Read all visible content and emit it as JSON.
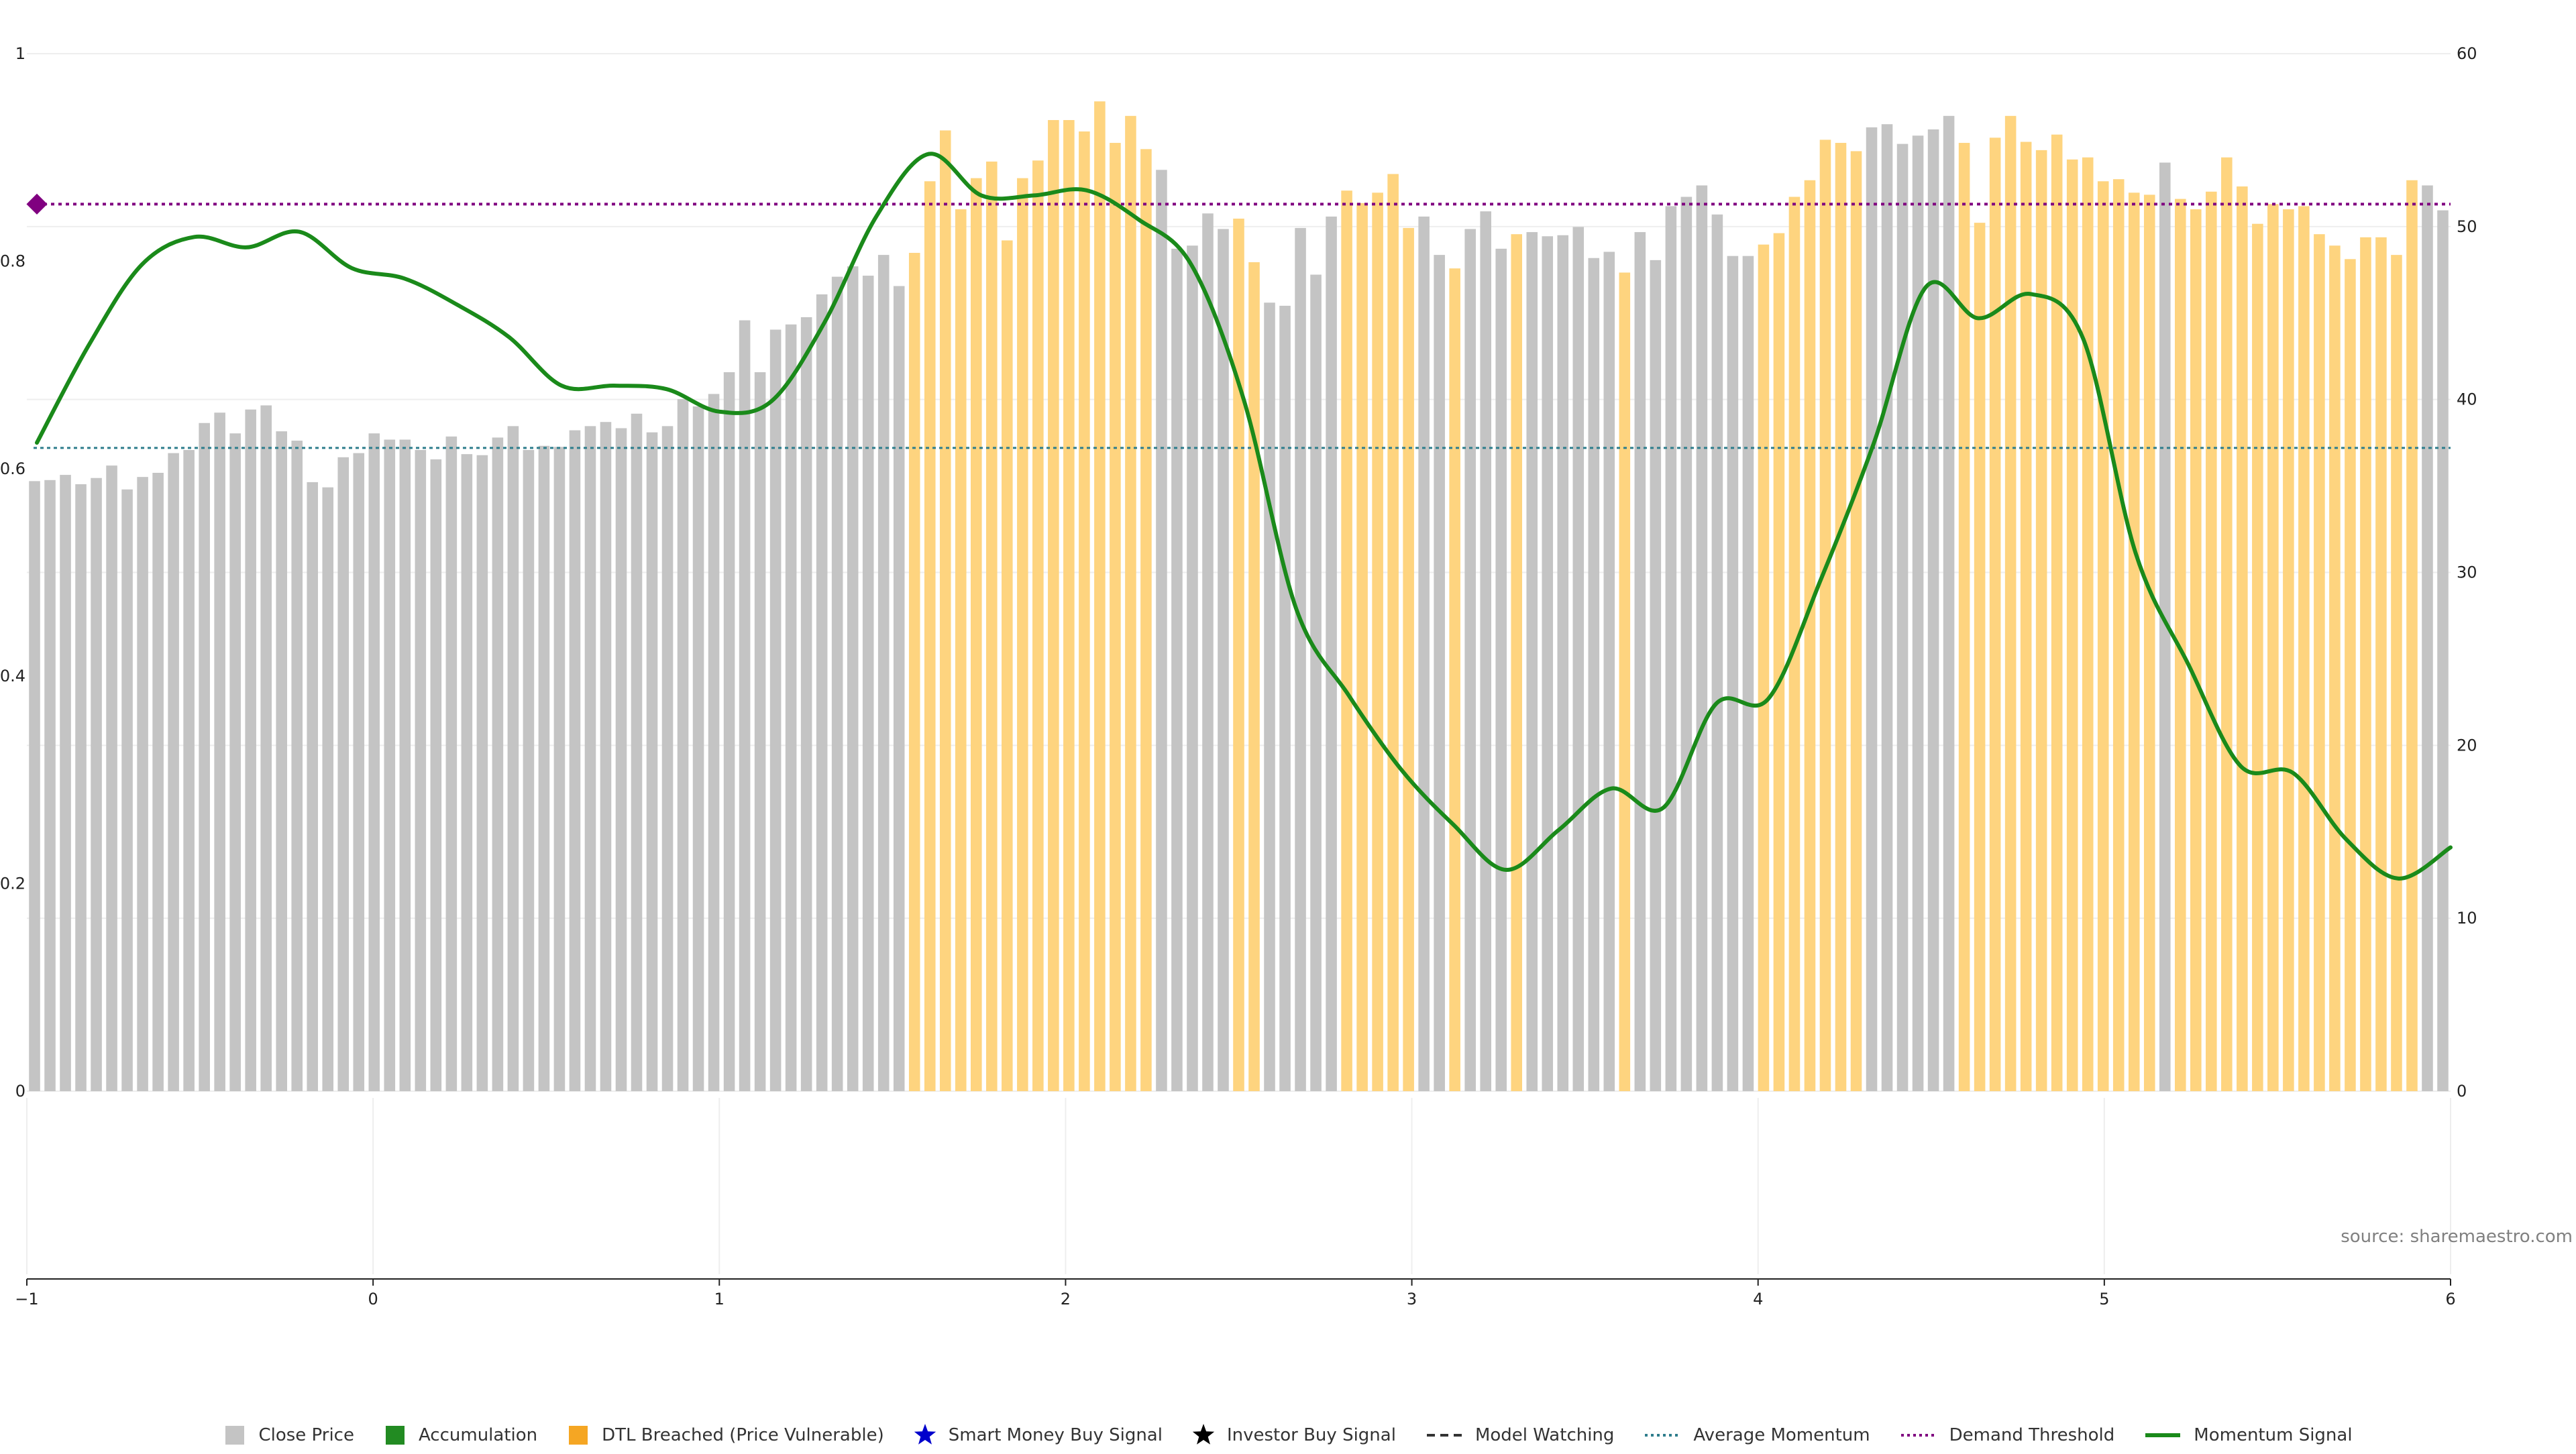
{
  "chart_data": {
    "type": "bar",
    "source": "source: sharemaestro.com",
    "left_axis": {
      "min": 0,
      "max": 1,
      "ticks": [
        "0",
        "0.2",
        "0.4",
        "0.6",
        "0.8",
        "1"
      ]
    },
    "right_axis": {
      "min": 0,
      "max": 60,
      "ticks": [
        "0",
        "10",
        "20",
        "30",
        "40",
        "50",
        "60"
      ]
    },
    "x_axis": {
      "min": -1,
      "max": 6,
      "ticks": [
        "−1",
        "0",
        "1",
        "2",
        "3",
        "4",
        "5",
        "6"
      ]
    },
    "grid": true,
    "legend_position": "bottom-center",
    "colors": {
      "close": "#c4c4c4",
      "accumulation": "#228b22",
      "dtl": "#fed47f",
      "smart_money": "#0000cc",
      "investor": "#000000",
      "model_watching": "#333333",
      "avg_momentum": "#2e7d8c",
      "demand": "#800080",
      "momentum": "#1a8a1a"
    },
    "legend": [
      {
        "label": "Close Price",
        "icon": "square",
        "color": "#c4c4c4"
      },
      {
        "label": "Accumulation",
        "icon": "square",
        "color": "#228b22"
      },
      {
        "label": "DTL Breached (Price Vulnerable)",
        "icon": "square",
        "color": "#f5a623"
      },
      {
        "label": "Smart Money Buy Signal",
        "icon": "star",
        "color": "#0000cc"
      },
      {
        "label": "Investor Buy Signal",
        "icon": "star",
        "color": "#000000"
      },
      {
        "label": "Model Watching",
        "icon": "dashed-line",
        "color": "#333333"
      },
      {
        "label": "Average Momentum",
        "icon": "dotted-line",
        "color": "#2e7d8c"
      },
      {
        "label": "Demand Threshold",
        "icon": "dotted-line",
        "color": "#800080"
      },
      {
        "label": "Momentum Signal",
        "icon": "solid-line",
        "color": "#1a8a1a"
      }
    ],
    "bars": {
      "values": [
        0.588,
        0.589,
        0.594,
        0.585,
        0.591,
        0.603,
        0.58,
        0.592,
        0.596,
        0.615,
        0.618,
        0.644,
        0.654,
        0.634,
        0.657,
        0.661,
        0.636,
        0.627,
        0.587,
        0.582,
        0.611,
        0.615,
        0.634,
        0.628,
        0.628,
        0.618,
        0.609,
        0.631,
        0.614,
        0.613,
        0.63,
        0.641,
        0.618,
        0.622,
        0.621,
        0.637,
        0.641,
        0.645,
        0.639,
        0.653,
        0.635,
        0.641,
        0.667,
        0.66,
        0.672,
        0.693,
        0.743,
        0.693,
        0.734,
        0.739,
        0.746,
        0.768,
        0.785,
        0.795,
        0.786,
        0.806,
        0.776,
        0.808,
        0.877,
        0.926,
        0.85,
        0.88,
        0.896,
        0.82,
        0.88,
        0.897,
        0.936,
        0.936,
        0.925,
        0.954,
        0.914,
        0.94,
        0.908,
        0.888,
        0.812,
        0.815,
        0.846,
        0.831,
        0.841,
        0.799,
        0.76,
        0.757,
        0.832,
        0.787,
        0.843,
        0.868,
        0.856,
        0.866,
        0.884,
        0.832,
        0.843,
        0.806,
        0.793,
        0.831,
        0.848,
        0.812,
        0.826,
        0.828,
        0.824,
        0.825,
        0.833,
        0.803,
        0.809,
        0.789,
        0.828,
        0.801,
        0.853,
        0.862,
        0.873,
        0.845,
        0.805,
        0.805,
        0.816,
        0.827,
        0.862,
        0.878,
        0.917,
        0.914,
        0.906,
        0.929,
        0.932,
        0.913,
        0.921,
        0.927,
        0.94,
        0.914,
        0.837,
        0.919,
        0.94,
        0.915,
        0.907,
        0.922,
        0.898,
        0.9,
        0.877,
        0.879,
        0.866,
        0.864,
        0.895,
        0.86,
        0.85,
        0.867,
        0.9,
        0.872,
        0.836,
        0.855,
        0.85,
        0.853,
        0.826,
        0.815,
        0.802,
        0.823,
        0.823,
        0.806,
        0.878,
        0.873,
        0.849
      ],
      "status": "gggggggggggggggggggggggggggggggggggggggggggggggggggggggggddddddddddddddddgggggddgggggdddddggdgggdggggggdggggggggdddddddggggggdddddddddddddgddddddddddddddddggdddggggggddd"
    },
    "momentum_signal": [
      37.5,
      43.2,
      47.8,
      49.4,
      48.8,
      49.7,
      47.6,
      47,
      45.5,
      43.6,
      40.8,
      40.8,
      40.6,
      39.3,
      39.9,
      44.4,
      50.6,
      54.2,
      51.8,
      51.8,
      52.1,
      50.4,
      47.8,
      40,
      27.9,
      22.9,
      18.6,
      15.4,
      12.8,
      15.1,
      17.5,
      16.4,
      22.4,
      22.7,
      29.6,
      37.4,
      46.5,
      44.7,
      46.1,
      43.5,
      31.1,
      24.7,
      18.8,
      18.4,
      14.6,
      12.3,
      14.1
    ],
    "average_momentum": 37.2,
    "demand_threshold": 51.3
  }
}
